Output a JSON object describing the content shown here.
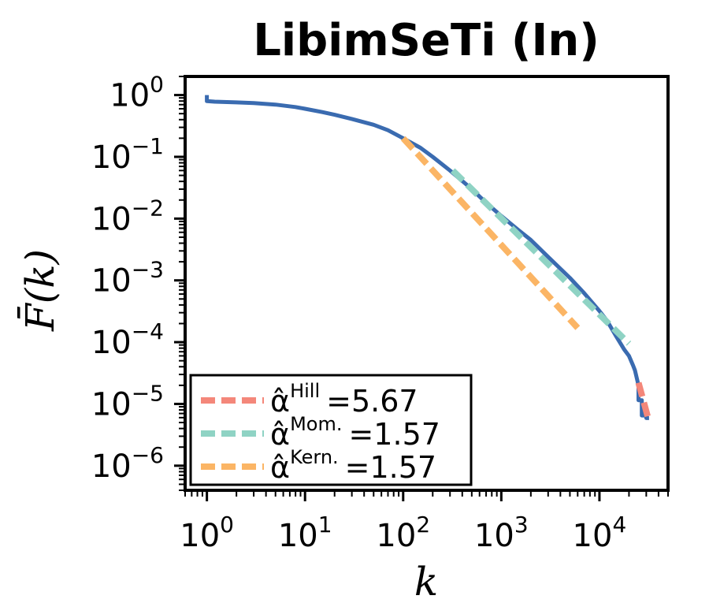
{
  "chart_data": {
    "type": "line",
    "title": "LibimSeTi (In)",
    "xlabel": "k",
    "ylabel": "F̄(k)",
    "xscale": "log",
    "yscale": "log",
    "xlim": [
      0.6,
      50000
    ],
    "ylim": [
      4e-07,
      2
    ],
    "x_ticks": [
      {
        "value": 1,
        "base": "10",
        "exp": "0"
      },
      {
        "value": 10,
        "base": "10",
        "exp": "1"
      },
      {
        "value": 100,
        "base": "10",
        "exp": "2"
      },
      {
        "value": 1000,
        "base": "10",
        "exp": "3"
      },
      {
        "value": 10000,
        "base": "10",
        "exp": "4"
      }
    ],
    "y_ticks": [
      {
        "value": 1,
        "base": "10",
        "exp": "0"
      },
      {
        "value": 0.1,
        "base": "10",
        "exp": "−1"
      },
      {
        "value": 0.01,
        "base": "10",
        "exp": "−2"
      },
      {
        "value": 0.001,
        "base": "10",
        "exp": "−3"
      },
      {
        "value": 0.0001,
        "base": "10",
        "exp": "−4"
      },
      {
        "value": 1e-05,
        "base": "10",
        "exp": "−5"
      },
      {
        "value": 1e-06,
        "base": "10",
        "exp": "−6"
      }
    ],
    "grid": false,
    "legend_position": "bottom-left",
    "series": [
      {
        "style": "solid",
        "color": "#3a6bb0",
        "x": [
          1,
          1,
          1.2,
          2,
          3,
          5,
          8,
          10,
          15,
          20,
          30,
          50,
          70,
          100,
          150,
          200,
          300,
          500,
          700,
          1000,
          1500,
          2000,
          3000,
          5000,
          7000,
          10000,
          12000,
          15000,
          18000,
          20000,
          22000,
          23000,
          25000,
          25000,
          26000,
          27000,
          27000,
          30000,
          30000,
          32000
        ],
        "y": [
          1,
          0.8,
          0.78,
          0.76,
          0.74,
          0.7,
          0.64,
          0.6,
          0.53,
          0.48,
          0.41,
          0.33,
          0.27,
          0.2,
          0.14,
          0.1,
          0.06,
          0.03,
          0.018,
          0.011,
          0.0065,
          0.0045,
          0.0024,
          0.0011,
          0.00062,
          0.00032,
          0.00022,
          0.00012,
          7.5e-05,
          6e-05,
          4.2e-05,
          3.5e-05,
          2e-05,
          1.15e-05,
          1.15e-05,
          1.15e-05,
          6.5e-06,
          6.5e-06,
          5.9e-06,
          5.9e-06
        ]
      },
      {
        "name": "α̂ Hill =5.67",
        "label_base": "α̂",
        "label_sup": "Hill",
        "label_value": "=5.67",
        "style": "dashed",
        "color": "#f4877a",
        "x": [
          25000,
          32000
        ],
        "y": [
          2.2e-05,
          5.2e-06
        ]
      },
      {
        "name": "α̂ Mom. =1.57",
        "label_base": "α̂",
        "label_sup": "Mom.",
        "label_value": "=1.57",
        "style": "dashed",
        "color": "#8fd3c4",
        "x": [
          320,
          20000
        ],
        "y": [
          0.06,
          9.5e-05
        ]
      },
      {
        "name": "α̂ Kern. =1.57",
        "label_base": "α̂",
        "label_sup": "Kern.",
        "label_value": "=1.57",
        "style": "dashed",
        "color": "#fbb565",
        "x": [
          100,
          6000
        ],
        "y": [
          0.2,
          0.00017
        ]
      }
    ]
  }
}
